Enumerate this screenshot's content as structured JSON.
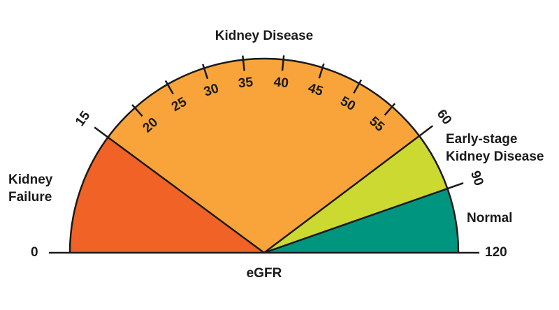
{
  "chart_data": {
    "type": "gauge",
    "axis_label": "eGFR",
    "ticks": [
      0,
      15,
      20,
      25,
      30,
      35,
      40,
      45,
      50,
      55,
      60,
      90,
      120
    ],
    "bands": [
      {
        "name": [
          "Kidney",
          "Failure"
        ],
        "from": 0,
        "to": 15,
        "color": "#f06225"
      },
      {
        "name": [
          "Kidney Disease"
        ],
        "from": 15,
        "to": 60,
        "color": "#f9a43b"
      },
      {
        "name": [
          "Early-stage",
          "Kidney Disease"
        ],
        "from": 60,
        "to": 90,
        "color": "#cbd931"
      },
      {
        "name": [
          "Normal"
        ],
        "from": 90,
        "to": 120,
        "color": "#00957f"
      }
    ]
  }
}
